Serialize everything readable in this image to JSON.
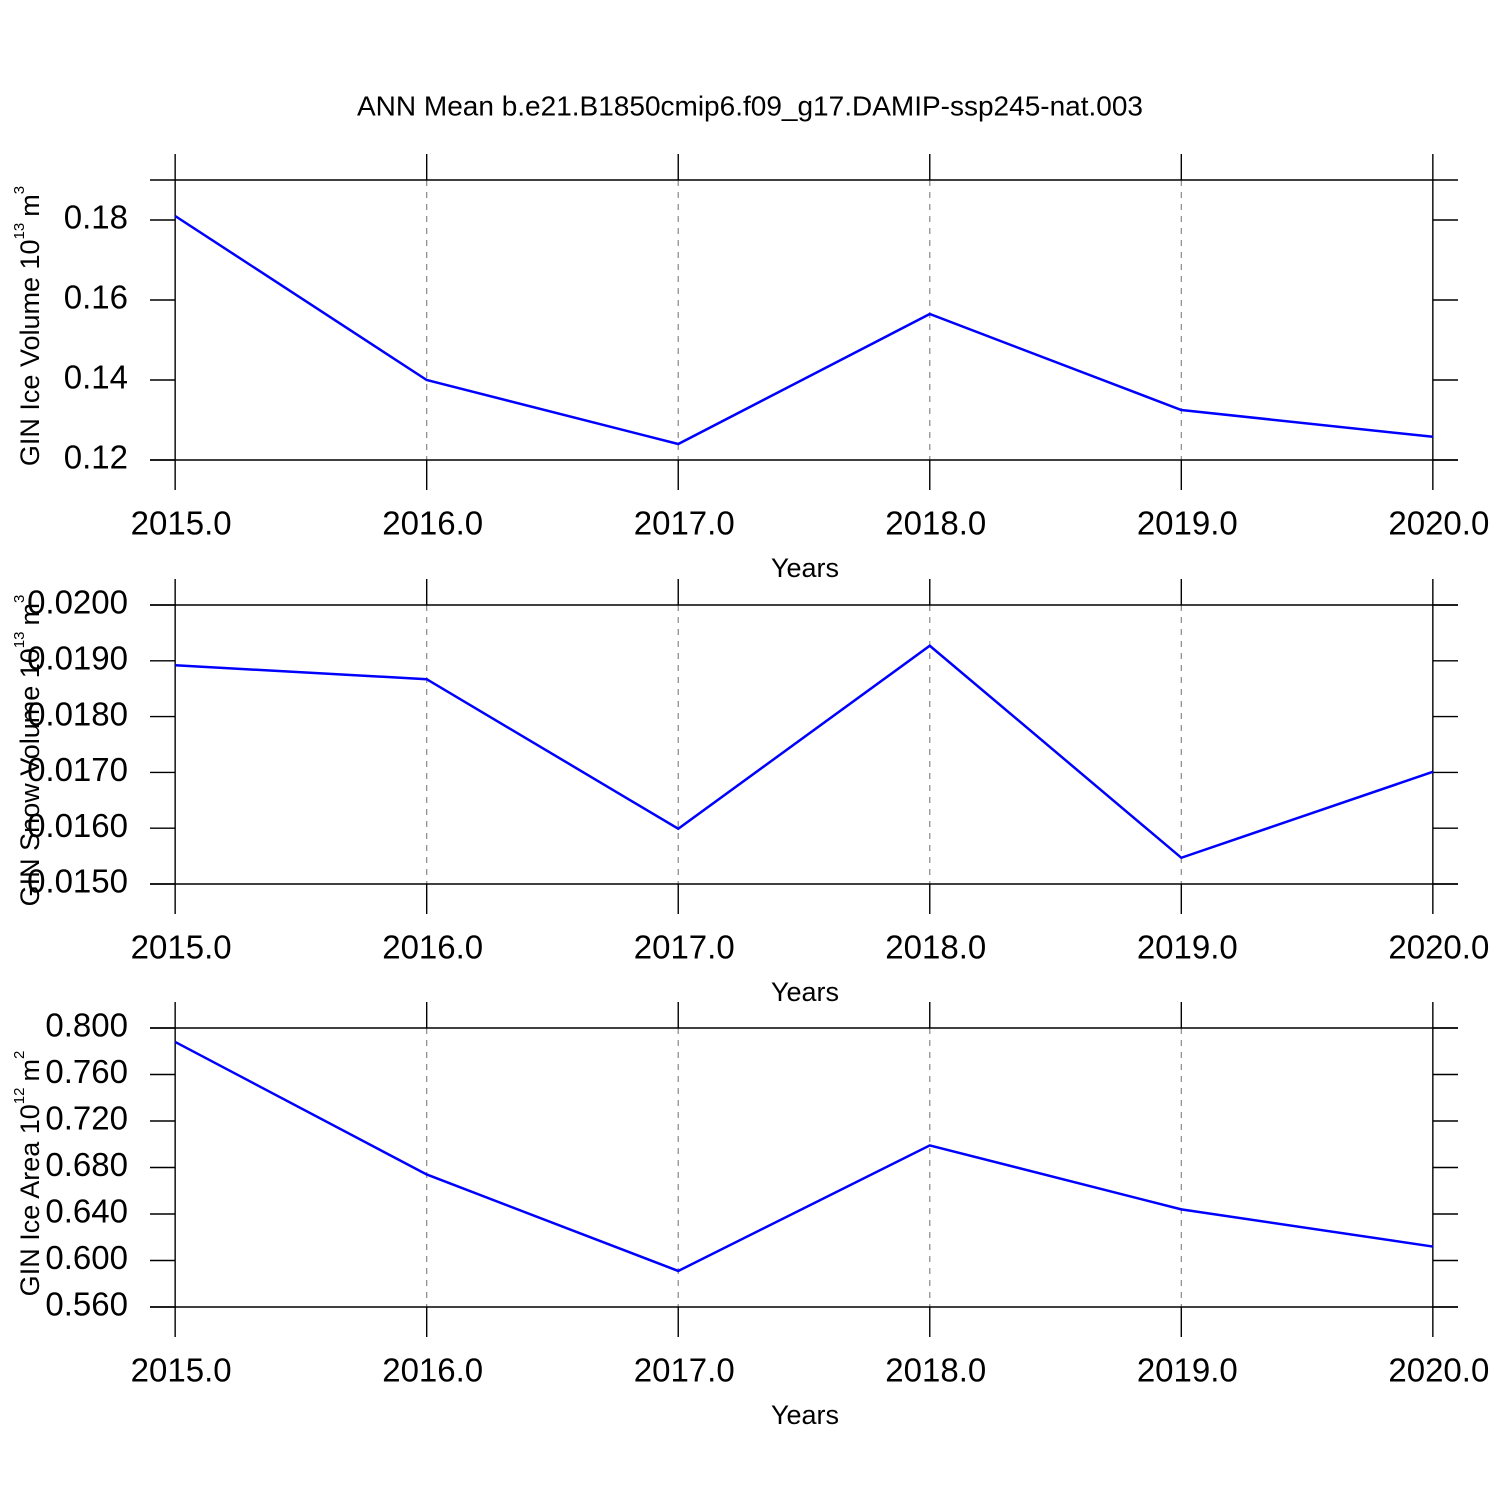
{
  "title": "ANN Mean b.e21.B1850cmip6.f09_g17.DAMIP-ssp245-nat.003",
  "chart_data": [
    {
      "type": "line",
      "x_label": "Years",
      "y_label": {
        "text": "GIN Ice Volume 10",
        "exponent": "13",
        "unit": "m",
        "unit_exponent": "3"
      },
      "x": [
        2015,
        2016,
        2017,
        2018,
        2019,
        2020
      ],
      "values": [
        0.181,
        0.14,
        0.124,
        0.1565,
        0.1325,
        0.1258
      ],
      "color": "#0000ff",
      "xlim": [
        2014.9,
        2020.1
      ],
      "xticks": [
        {
          "value": 2015,
          "label": "2015.0"
        },
        {
          "value": 2016,
          "label": "2016.0"
        },
        {
          "value": 2017,
          "label": "2017.0"
        },
        {
          "value": 2018,
          "label": "2018.0"
        },
        {
          "value": 2019,
          "label": "2019.0"
        },
        {
          "value": 2020,
          "label": "2020.0"
        }
      ],
      "ylim": [
        0.12,
        0.19
      ],
      "yticks": [
        0.12,
        0.14,
        0.16,
        0.18
      ],
      "grid": "x-dashed"
    },
    {
      "type": "line",
      "x_label": "Years",
      "y_label": {
        "text": "GIN Snow Volume 10",
        "exponent": "13",
        "unit": "m",
        "unit_exponent": "3"
      },
      "x": [
        2015,
        2016,
        2017,
        2018,
        2019,
        2020
      ],
      "values": [
        0.01892,
        0.01867,
        0.01599,
        0.01927,
        0.01547,
        0.01701
      ],
      "color": "#0000ff",
      "xlim": [
        2014.9,
        2020.1
      ],
      "xticks": [
        {
          "value": 2015,
          "label": "2015.0"
        },
        {
          "value": 2016,
          "label": "2016.0"
        },
        {
          "value": 2017,
          "label": "2017.0"
        },
        {
          "value": 2018,
          "label": "2018.0"
        },
        {
          "value": 2019,
          "label": "2019.0"
        },
        {
          "value": 2020,
          "label": "2020.0"
        }
      ],
      "ylim": [
        0.015,
        0.02
      ],
      "yticks": [
        {
          "value": 0.015,
          "label": "0.0150"
        },
        {
          "value": 0.016,
          "label": "0.0160"
        },
        {
          "value": 0.017,
          "label": "0.0170"
        },
        {
          "value": 0.018,
          "label": "0.0180"
        },
        {
          "value": 0.019,
          "label": "0.0190"
        },
        {
          "value": 0.02,
          "label": "0.0200"
        }
      ],
      "grid": "x-dashed"
    },
    {
      "type": "line",
      "x_label": "Years",
      "y_label": {
        "text": "GIN Ice Area 10",
        "exponent": "12",
        "unit": "m",
        "unit_exponent": "2"
      },
      "x": [
        2015,
        2016,
        2017,
        2018,
        2019,
        2020
      ],
      "values": [
        0.788,
        0.674,
        0.591,
        0.699,
        0.644,
        0.612
      ],
      "color": "#0000ff",
      "xlim": [
        2014.9,
        2020.1
      ],
      "xticks": [
        {
          "value": 2015,
          "label": "2015.0"
        },
        {
          "value": 2016,
          "label": "2016.0"
        },
        {
          "value": 2017,
          "label": "2017.0"
        },
        {
          "value": 2018,
          "label": "2018.0"
        },
        {
          "value": 2019,
          "label": "2019.0"
        },
        {
          "value": 2020,
          "label": "2020.0"
        }
      ],
      "ylim": [
        0.56,
        0.8
      ],
      "yticks": [
        {
          "value": 0.56,
          "label": "0.560"
        },
        {
          "value": 0.6,
          "label": "0.600"
        },
        {
          "value": 0.64,
          "label": "0.640"
        },
        {
          "value": 0.68,
          "label": "0.680"
        },
        {
          "value": 0.72,
          "label": "0.720"
        },
        {
          "value": 0.76,
          "label": "0.760"
        },
        {
          "value": 0.8,
          "label": "0.800"
        }
      ],
      "grid": "x-dashed"
    }
  ]
}
